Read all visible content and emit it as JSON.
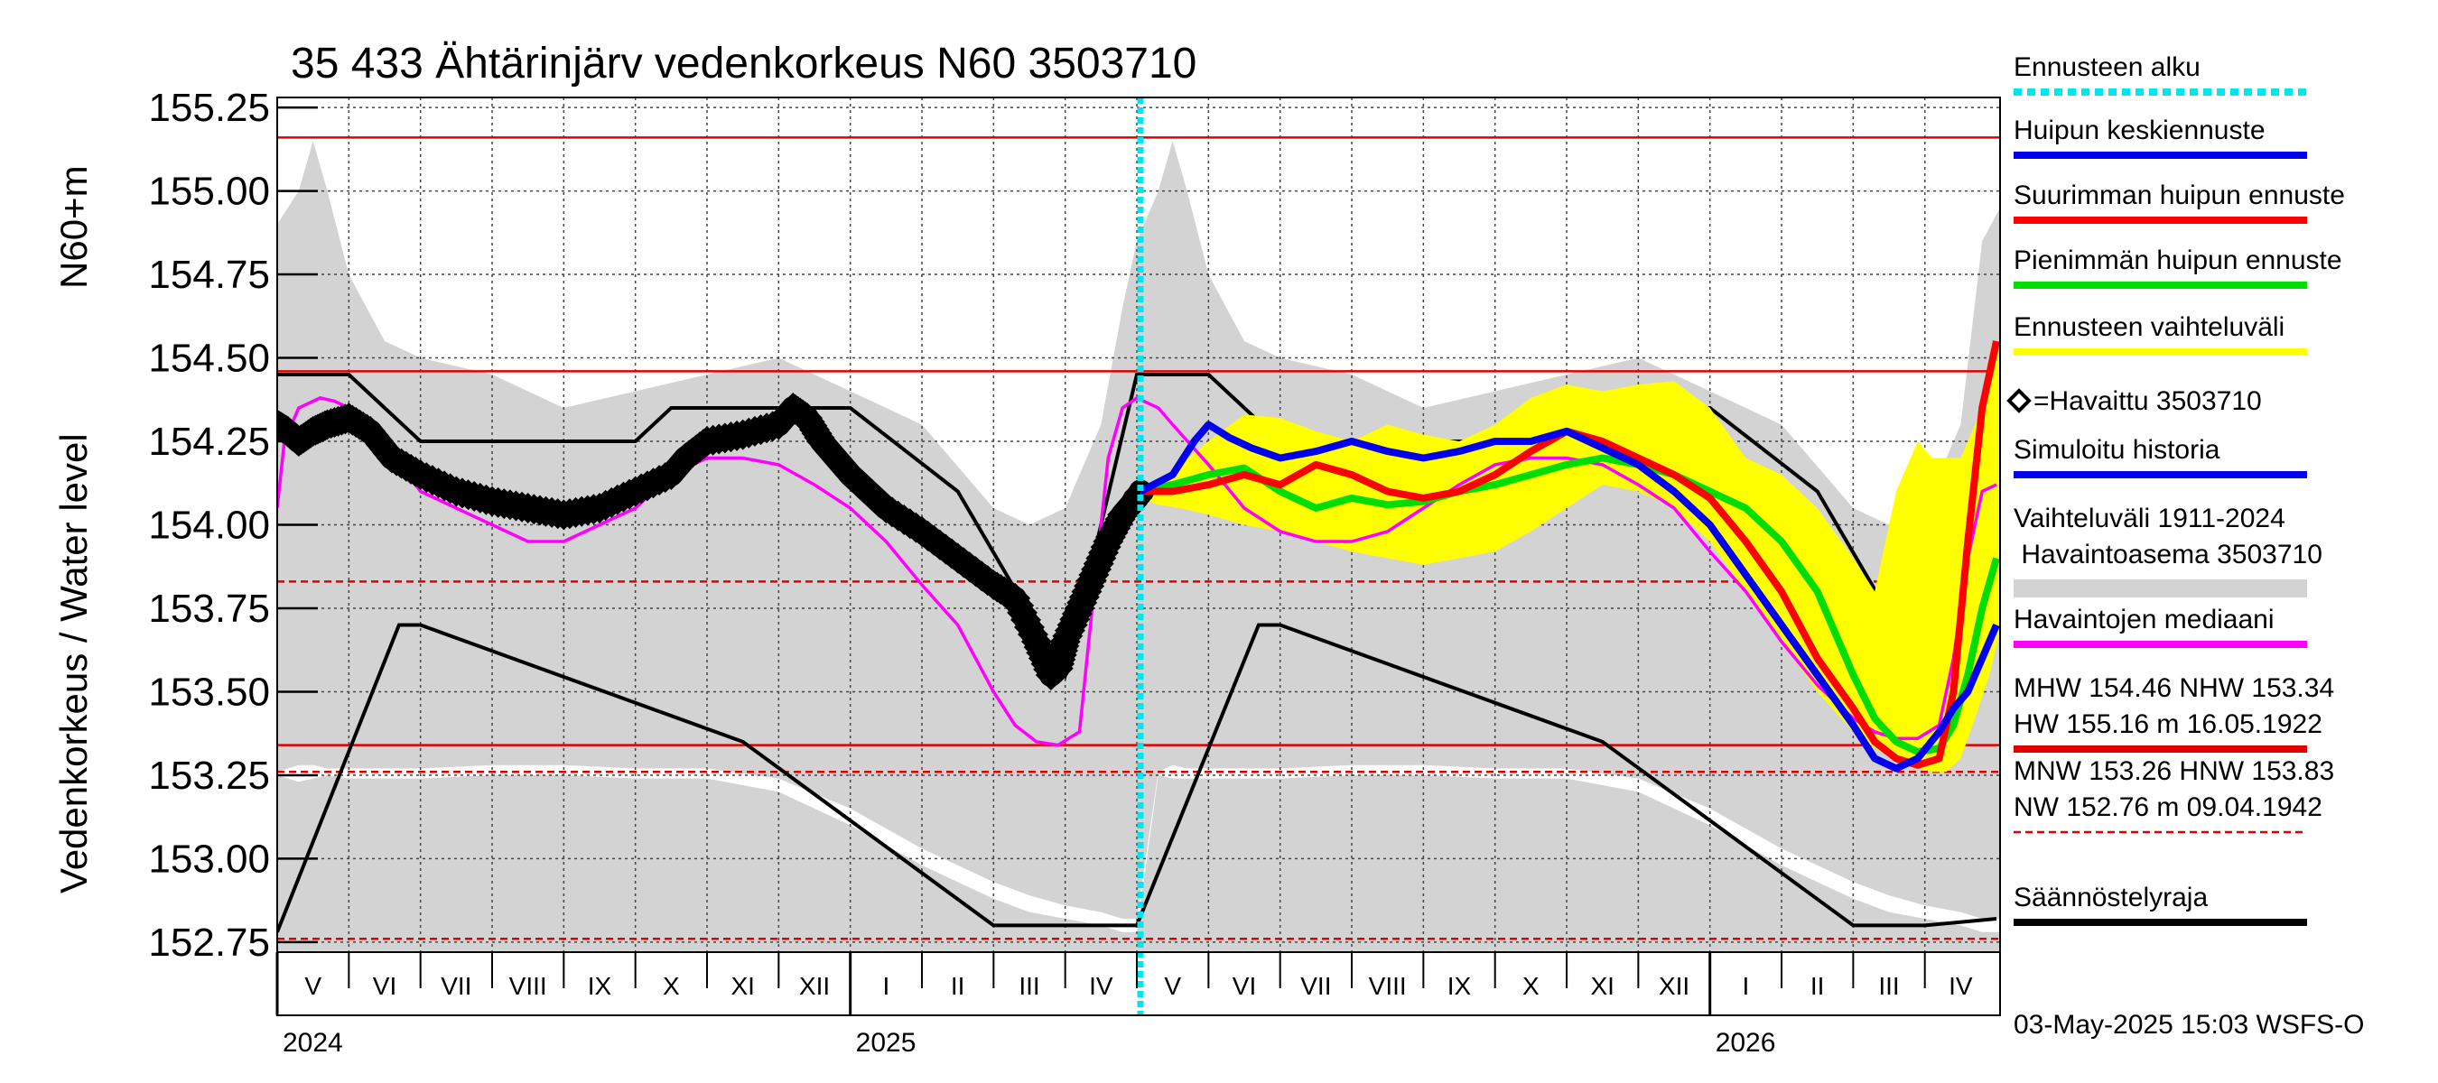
{
  "chart_data": {
    "type": "line",
    "title": "35 433 Ähtärinjärv vedenkorkeus N60 3503710",
    "ylabel_line1": "N60+m",
    "ylabel_line2": "Vedenkorkeus / Water level",
    "ylim": [
      152.72,
      155.28
    ],
    "y_ticks": [
      "152.75",
      "153.00",
      "153.25",
      "153.50",
      "153.75",
      "154.00",
      "154.25",
      "154.50",
      "154.75",
      "155.00",
      "155.25"
    ],
    "y_tick_values": [
      152.75,
      153.0,
      153.25,
      153.5,
      153.75,
      154.0,
      154.25,
      154.5,
      154.75,
      155.0,
      155.25
    ],
    "grid": true,
    "months": [
      {
        "label": "V",
        "start": 0,
        "end": 1
      },
      {
        "label": "VI",
        "start": 1,
        "end": 2
      },
      {
        "label": "VII",
        "start": 2,
        "end": 3
      },
      {
        "label": "VIII",
        "start": 3,
        "end": 4
      },
      {
        "label": "IX",
        "start": 4,
        "end": 5
      },
      {
        "label": "X",
        "start": 5,
        "end": 6
      },
      {
        "label": "XI",
        "start": 6,
        "end": 7
      },
      {
        "label": "XII",
        "start": 7,
        "end": 8
      },
      {
        "label": "I",
        "start": 8,
        "end": 9
      },
      {
        "label": "II",
        "start": 9,
        "end": 10
      },
      {
        "label": "III",
        "start": 10,
        "end": 11
      },
      {
        "label": "IV",
        "start": 11,
        "end": 12
      },
      {
        "label": "V",
        "start": 12,
        "end": 13
      },
      {
        "label": "VI",
        "start": 13,
        "end": 14
      },
      {
        "label": "VII",
        "start": 14,
        "end": 15
      },
      {
        "label": "VIII",
        "start": 15,
        "end": 16
      },
      {
        "label": "IX",
        "start": 16,
        "end": 17
      },
      {
        "label": "X",
        "start": 17,
        "end": 18
      },
      {
        "label": "XI",
        "start": 18,
        "end": 19
      },
      {
        "label": "XII",
        "start": 19,
        "end": 20
      },
      {
        "label": "I",
        "start": 20,
        "end": 21
      },
      {
        "label": "II",
        "start": 21,
        "end": 22
      },
      {
        "label": "III",
        "start": 22,
        "end": 23
      },
      {
        "label": "IV",
        "start": 23,
        "end": 24
      }
    ],
    "years": [
      {
        "label": "2024",
        "at": 0
      },
      {
        "label": "2025",
        "at": 8
      },
      {
        "label": "2026",
        "at": 20
      }
    ],
    "x_unit": "months since start of May 2024",
    "xlim": [
      0,
      24.05
    ],
    "forecast_start": 12.05,
    "reference_lines": [
      {
        "name": "HW",
        "value": 155.16,
        "style": "solid",
        "color": "#e00000"
      },
      {
        "name": "MHW",
        "value": 154.46,
        "style": "solid",
        "color": "#e00000"
      },
      {
        "name": "NHW",
        "value": 153.34,
        "style": "solid",
        "color": "#e00000"
      },
      {
        "name": "HNW",
        "value": 153.83,
        "style": "dashed",
        "color": "#e00000"
      },
      {
        "name": "MNW",
        "value": 153.26,
        "style": "dashed",
        "color": "#e00000"
      },
      {
        "name": "NW",
        "value": 152.76,
        "style": "dashed",
        "color": "#e00000"
      }
    ],
    "variation_range": {
      "color": "#d3d3d3",
      "x": [
        0,
        0.3,
        0.5,
        0.7,
        1.0,
        1.5,
        2.0,
        3.0,
        4.0,
        5.0,
        6.0,
        7.0,
        8.0,
        9.0,
        10.0,
        10.5,
        11.0,
        11.5,
        11.8,
        12.0,
        12.3,
        12.5,
        12.7,
        13.0,
        13.5,
        14.0,
        15.0,
        16.0,
        17.0,
        18.0,
        19.0,
        20.0,
        21.0,
        22.0,
        22.5,
        23.0,
        23.5,
        23.8,
        24.05
      ],
      "upper": [
        154.9,
        155.0,
        155.15,
        155.0,
        154.75,
        154.55,
        154.5,
        154.45,
        154.35,
        154.4,
        154.45,
        154.5,
        154.4,
        154.3,
        154.05,
        154.0,
        154.05,
        154.3,
        154.65,
        154.85,
        155.0,
        155.15,
        155.0,
        154.75,
        154.55,
        154.5,
        154.45,
        154.35,
        154.4,
        154.45,
        154.5,
        154.4,
        154.3,
        154.05,
        154.0,
        154.05,
        154.3,
        154.85,
        154.95
      ],
      "lower": [
        153.25,
        153.23,
        153.24,
        153.25,
        153.24,
        153.24,
        153.24,
        153.25,
        153.25,
        153.24,
        153.24,
        153.2,
        153.1,
        152.98,
        152.88,
        152.84,
        152.82,
        152.8,
        152.78,
        152.78,
        153.25,
        153.24,
        153.24,
        153.24,
        153.24,
        153.24,
        153.25,
        153.25,
        153.24,
        153.24,
        153.2,
        153.1,
        152.98,
        152.88,
        152.84,
        152.82,
        152.8,
        152.78,
        152.78
      ],
      "white_top": [
        153.26,
        153.28,
        153.28,
        153.27,
        153.27,
        153.27,
        153.27,
        153.28,
        153.28,
        153.27,
        153.27,
        153.24,
        153.15,
        153.03,
        152.93,
        152.89,
        152.86,
        152.84,
        152.82,
        152.82,
        153.26,
        153.28,
        153.27,
        153.27,
        153.27,
        153.27,
        153.28,
        153.28,
        153.27,
        153.27,
        153.24,
        153.15,
        153.03,
        152.93,
        152.89,
        152.86,
        152.84,
        152.82,
        152.82
      ]
    },
    "regulation_limit": {
      "color": "#000000",
      "upper": {
        "x": [
          0,
          1.0,
          2.0,
          5.0,
          5.5,
          7.0,
          8.0,
          9.5,
          11.0,
          12.0,
          13.0,
          14.0,
          17.0,
          17.5,
          19.0,
          20.0,
          21.5,
          23.0,
          24.05
        ],
        "y": [
          154.45,
          154.45,
          154.25,
          154.25,
          154.35,
          154.35,
          154.35,
          154.1,
          153.55,
          154.45,
          154.45,
          154.25,
          154.25,
          154.35,
          154.35,
          154.35,
          154.1,
          153.55,
          154.45
        ]
      },
      "lower": {
        "x": [
          0,
          1.7,
          2.0,
          6.5,
          10.0,
          11.0,
          12.0,
          13.7,
          14.0,
          18.5,
          22.0,
          23.0,
          24.0
        ],
        "y": [
          152.78,
          153.7,
          153.7,
          153.35,
          152.8,
          152.8,
          152.8,
          153.7,
          153.7,
          153.35,
          152.8,
          152.8,
          152.82
        ]
      }
    },
    "series": [
      {
        "name": "Havaittu 3503710",
        "color": "#000000",
        "x": [
          0,
          0.15,
          0.3,
          0.5,
          0.7,
          1.0,
          1.3,
          1.6,
          2.0,
          2.5,
          3.0,
          3.5,
          4.0,
          4.5,
          5.0,
          5.5,
          5.7,
          6.0,
          6.5,
          7.0,
          7.2,
          7.4,
          7.6,
          8.0,
          8.5,
          9.0,
          9.5,
          10.0,
          10.3,
          10.6,
          10.8,
          10.9,
          11.0,
          11.2,
          11.4,
          11.6,
          11.8,
          12.0,
          12.05
        ],
        "y": [
          154.3,
          154.28,
          154.25,
          154.28,
          154.3,
          154.32,
          154.28,
          154.2,
          154.15,
          154.1,
          154.07,
          154.05,
          154.03,
          154.05,
          154.1,
          154.15,
          154.2,
          154.25,
          154.27,
          154.3,
          154.35,
          154.32,
          154.25,
          154.15,
          154.05,
          153.98,
          153.9,
          153.82,
          153.78,
          153.65,
          153.55,
          153.57,
          153.65,
          153.75,
          153.85,
          153.95,
          154.03,
          154.08,
          154.1
        ]
      },
      {
        "name": "Havaintojen mediaani",
        "color": "#ff00ff",
        "x": [
          0,
          0.1,
          0.3,
          0.6,
          0.8,
          1.0,
          1.5,
          2.0,
          2.5,
          3.0,
          3.5,
          4.0,
          4.5,
          5.0,
          5.5,
          6.0,
          6.5,
          7.0,
          7.5,
          8.0,
          8.5,
          9.0,
          9.5,
          10.0,
          10.3,
          10.6,
          10.9,
          11.2,
          11.4,
          11.6,
          11.8,
          12.0,
          12.3,
          12.5,
          13.0,
          13.5,
          14.0,
          14.5,
          15.0,
          15.5,
          16.0,
          16.5,
          17.0,
          17.5,
          18.0,
          18.5,
          19.0,
          19.5,
          20.0,
          20.5,
          21.0,
          21.5,
          22.0,
          22.3,
          22.6,
          22.9,
          23.2,
          23.4,
          23.6,
          23.8,
          24.0
        ],
        "y": [
          154.05,
          154.25,
          154.35,
          154.38,
          154.37,
          154.35,
          154.25,
          154.1,
          154.05,
          154.0,
          153.95,
          153.95,
          154.0,
          154.05,
          154.15,
          154.2,
          154.2,
          154.18,
          154.12,
          154.05,
          153.95,
          153.82,
          153.7,
          153.5,
          153.4,
          153.35,
          153.34,
          153.38,
          153.8,
          154.2,
          154.35,
          154.38,
          154.35,
          154.3,
          154.18,
          154.05,
          153.98,
          153.95,
          153.95,
          153.98,
          154.05,
          154.12,
          154.18,
          154.2,
          154.2,
          154.18,
          154.12,
          154.05,
          153.92,
          153.8,
          153.65,
          153.52,
          153.42,
          153.38,
          153.36,
          153.36,
          153.4,
          153.6,
          153.9,
          154.1,
          154.12
        ]
      },
      {
        "name": "Ennusteen vaihteluväli",
        "type": "band",
        "color": "#ffff00",
        "x": [
          12.05,
          12.3,
          12.6,
          13.0,
          13.5,
          14.0,
          14.5,
          15.0,
          15.5,
          16.0,
          16.5,
          17.0,
          17.5,
          18.0,
          18.5,
          19.0,
          19.5,
          20.0,
          20.5,
          21.0,
          21.5,
          22.0,
          22.3,
          22.6,
          22.9,
          23.1,
          23.3,
          23.5,
          23.7,
          23.9,
          24.05
        ],
        "upper": [
          154.1,
          154.12,
          154.18,
          154.25,
          154.33,
          154.32,
          154.28,
          154.25,
          154.3,
          154.27,
          154.25,
          154.3,
          154.38,
          154.42,
          154.4,
          154.42,
          154.43,
          154.35,
          154.2,
          154.15,
          154.05,
          153.9,
          153.8,
          154.1,
          154.25,
          154.2,
          154.2,
          154.2,
          154.3,
          154.4,
          154.55
        ],
        "lower": [
          154.08,
          154.06,
          154.05,
          154.03,
          154.0,
          153.98,
          153.95,
          153.92,
          153.9,
          153.88,
          153.9,
          153.92,
          153.98,
          154.05,
          154.12,
          154.1,
          154.05,
          153.95,
          153.8,
          153.65,
          153.5,
          153.38,
          153.33,
          153.3,
          153.27,
          153.26,
          153.26,
          153.3,
          153.42,
          153.55,
          153.68
        ]
      },
      {
        "name": "Pienimmän huipun ennuste",
        "color": "#00dd00",
        "x": [
          12.05,
          12.5,
          13.0,
          13.5,
          14.0,
          14.5,
          15.0,
          15.5,
          16.0,
          16.5,
          17.0,
          17.5,
          18.0,
          18.5,
          19.0,
          19.5,
          20.0,
          20.5,
          21.0,
          21.5,
          22.0,
          22.3,
          22.6,
          22.9,
          23.2,
          23.4,
          23.6,
          23.8,
          24.0
        ],
        "y": [
          154.1,
          154.12,
          154.15,
          154.17,
          154.1,
          154.05,
          154.08,
          154.06,
          154.07,
          154.1,
          154.12,
          154.15,
          154.18,
          154.2,
          154.18,
          154.15,
          154.1,
          154.05,
          153.95,
          153.8,
          153.55,
          153.42,
          153.35,
          153.32,
          153.33,
          153.4,
          153.55,
          153.75,
          153.9
        ]
      },
      {
        "name": "Suurimman huipun ennuste",
        "color": "#ff0000",
        "x": [
          12.05,
          12.5,
          13.0,
          13.5,
          14.0,
          14.5,
          15.0,
          15.5,
          16.0,
          16.5,
          17.0,
          17.5,
          18.0,
          18.5,
          19.0,
          19.5,
          20.0,
          20.5,
          21.0,
          21.5,
          22.0,
          22.3,
          22.6,
          22.9,
          23.2,
          23.4,
          23.6,
          23.8,
          24.0
        ],
        "y": [
          154.1,
          154.1,
          154.12,
          154.15,
          154.12,
          154.18,
          154.15,
          154.1,
          154.08,
          154.1,
          154.15,
          154.22,
          154.28,
          154.25,
          154.2,
          154.15,
          154.08,
          153.95,
          153.8,
          153.6,
          153.45,
          153.35,
          153.3,
          153.28,
          153.3,
          153.5,
          153.95,
          154.35,
          154.55
        ]
      },
      {
        "name": "Huipun keskiennuste",
        "color": "#0000ee",
        "x": [
          12.05,
          12.5,
          12.8,
          13.0,
          13.3,
          13.6,
          14.0,
          14.5,
          15.0,
          15.5,
          16.0,
          16.5,
          17.0,
          17.5,
          18.0,
          18.5,
          19.0,
          19.5,
          20.0,
          20.5,
          21.0,
          21.5,
          22.0,
          22.3,
          22.6,
          22.9,
          23.2,
          23.4,
          23.6,
          23.8,
          24.0
        ],
        "y": [
          154.1,
          154.15,
          154.25,
          154.3,
          154.26,
          154.23,
          154.2,
          154.22,
          154.25,
          154.22,
          154.2,
          154.22,
          154.25,
          154.25,
          154.28,
          154.23,
          154.18,
          154.1,
          154.0,
          153.85,
          153.7,
          153.55,
          153.4,
          153.3,
          153.27,
          153.3,
          153.38,
          153.45,
          153.5,
          153.6,
          153.7
        ]
      }
    ]
  },
  "legend": {
    "items": [
      {
        "label": "Ennusteen alku",
        "style": "dotted",
        "color": "#00e5ee"
      },
      {
        "label": "Huipun keskiennuste",
        "style": "solid",
        "color": "#0000ee"
      },
      {
        "label": "Suurimman huipun ennuste",
        "style": "solid",
        "color": "#ff0000"
      },
      {
        "label": "Pienimmän huipun ennuste",
        "style": "solid",
        "color": "#00dd00"
      },
      {
        "label": "Ennusteen vaihteluväli",
        "style": "solid",
        "color": "#ffff00"
      },
      {
        "label": "=Havaittu 3503710",
        "style": "diamond",
        "color": "#000000"
      },
      {
        "label": "Simuloitu historia",
        "style": "solid",
        "color": "#0000ee"
      },
      {
        "label": "Vaihteluväli 1911-2024",
        "label2": " Havaintoasema 3503710",
        "style": "band",
        "color": "#d3d3d3"
      },
      {
        "label": "Havaintojen mediaani",
        "style": "solid",
        "color": "#ff00ff"
      },
      {
        "label": "MHW 154.46 NHW 153.34",
        "label2": "HW 155.16 m 16.05.1922",
        "style": "solid",
        "color": "#e00000"
      },
      {
        "label": "MNW 153.26 HNW 153.83",
        "label2": "NW 152.76 m 09.04.1942",
        "style": "dashed",
        "color": "#e00000"
      },
      {
        "label": "Säännöstelyraja",
        "style": "solid",
        "color": "#000000"
      }
    ]
  },
  "footer": "03-May-2025 15:03 WSFS-O"
}
